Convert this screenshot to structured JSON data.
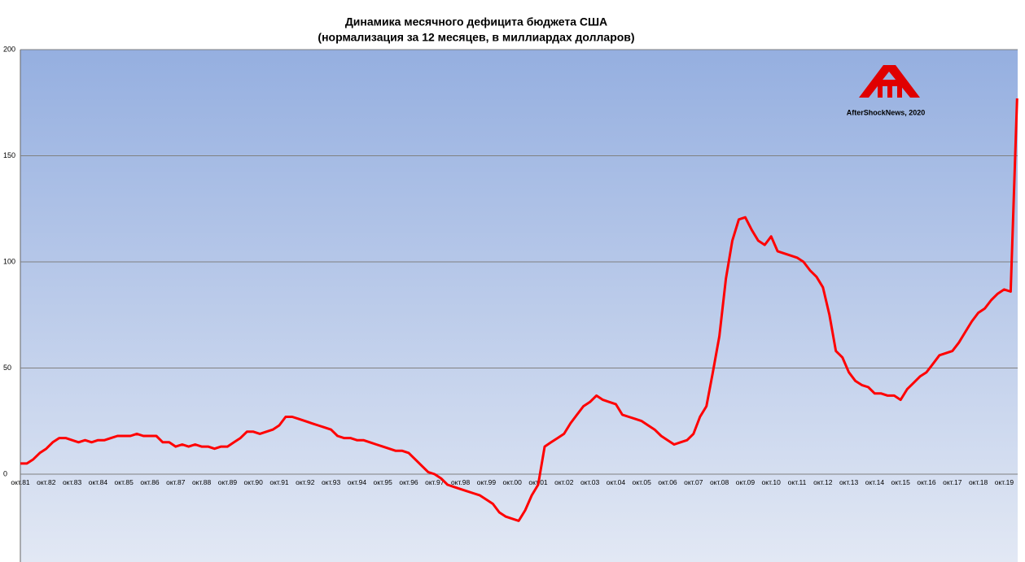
{
  "chart_data": {
    "type": "line",
    "title": "Динамика месячного дефицита бюджета США",
    "subtitle": "(нормализация за 12 месяцев, в миллиардах долларов)",
    "watermark": "AfterShockNews, 2020",
    "categories": [
      "окт.81",
      null,
      null,
      null,
      "окт.82",
      null,
      null,
      null,
      "окт.83",
      null,
      null,
      null,
      "окт.84",
      null,
      null,
      null,
      "окт.85",
      null,
      null,
      null,
      "окт.86",
      null,
      null,
      null,
      "окт.87",
      null,
      null,
      null,
      "окт.88",
      null,
      null,
      null,
      "окт.89",
      null,
      null,
      null,
      "окт.90",
      null,
      null,
      null,
      "окт.91",
      null,
      null,
      null,
      "окт.92",
      null,
      null,
      null,
      "окт.93",
      null,
      null,
      null,
      "окт.94",
      null,
      null,
      null,
      "окт.95",
      null,
      null,
      null,
      "окт.96",
      null,
      null,
      null,
      "окт.97",
      null,
      null,
      null,
      "окт.98",
      null,
      null,
      null,
      "окт.99",
      null,
      null,
      null,
      "окт.00",
      null,
      null,
      null,
      "окт.01",
      null,
      null,
      null,
      "окт.02",
      null,
      null,
      null,
      "окт.03",
      null,
      null,
      null,
      "окт.04",
      null,
      null,
      null,
      "окт.05",
      null,
      null,
      null,
      "окт.06",
      null,
      null,
      null,
      "окт.07",
      null,
      null,
      null,
      "окт.08",
      null,
      null,
      null,
      "окт.09",
      null,
      null,
      null,
      "окт.10",
      null,
      null,
      null,
      "окт.11",
      null,
      null,
      null,
      "окт.12",
      null,
      null,
      null,
      "окт.13",
      null,
      null,
      null,
      "окт.14",
      null,
      null,
      null,
      "окт.15",
      null,
      null,
      null,
      "окт.16",
      null,
      null,
      null,
      "окт.17",
      null,
      null,
      null,
      "окт.18",
      null,
      null,
      null,
      "окт.19",
      null,
      null
    ],
    "series": [
      {
        "color": "#ff0000",
        "values": [
          5,
          5,
          7,
          10,
          12,
          15,
          17,
          17,
          16,
          15,
          16,
          15,
          16,
          16,
          17,
          18,
          18,
          18,
          19,
          18,
          18,
          18,
          15,
          15,
          13,
          14,
          13,
          14,
          13,
          13,
          12,
          13,
          13,
          15,
          17,
          20,
          20,
          19,
          20,
          21,
          23,
          27,
          27,
          26,
          25,
          24,
          23,
          22,
          21,
          18,
          17,
          17,
          16,
          16,
          15,
          14,
          13,
          12,
          11,
          11,
          10,
          7,
          4,
          1,
          0,
          -2,
          -5,
          -6,
          -7,
          -8,
          -9,
          -10,
          -12,
          -14,
          -18,
          -20,
          -21,
          -22,
          -17,
          -10,
          -5,
          13,
          15,
          17,
          19,
          24,
          28,
          32,
          34,
          37,
          35,
          34,
          33,
          28,
          27,
          26,
          25,
          23,
          21,
          18,
          16,
          14,
          15,
          16,
          19,
          27,
          32,
          48,
          65,
          92,
          110,
          120,
          121,
          115,
          110,
          108,
          112,
          105,
          104,
          103,
          102,
          100,
          96,
          93,
          88,
          75,
          58,
          55,
          48,
          44,
          42,
          41,
          38,
          38,
          37,
          37,
          35,
          40,
          43,
          46,
          48,
          52,
          56,
          57,
          58,
          62,
          67,
          72,
          76,
          78,
          82,
          85,
          87,
          86,
          177
        ]
      }
    ],
    "ylim": [
      -41,
      200
    ],
    "yticks": [
      0,
      50,
      100,
      150,
      200
    ],
    "grid": true
  }
}
